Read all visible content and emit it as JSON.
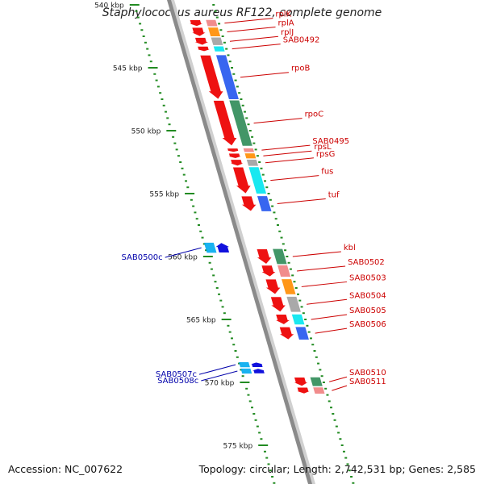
{
  "title": "Staphylococcus aureus RF122, complete genome",
  "footer": {
    "accession": "Accession: NC_007622",
    "stats": "Topology: circular; Length: 2,742,531 bp; Genes: 2,585"
  },
  "scale": {
    "unit": "kbp",
    "ticks": [
      540,
      545,
      550,
      555,
      560,
      565,
      570,
      575
    ]
  },
  "colors": {
    "forward_gene": "#ee1111",
    "reverse_gene": "#1111dd",
    "label_forward": "#cc0000",
    "label_reverse": "#0000aa",
    "tick": "#228b22"
  },
  "genes_forward": [
    {
      "label": "rplK",
      "start": 541.2,
      "end": 541.7
    },
    {
      "label": "rplA",
      "start": 541.8,
      "end": 542.5
    },
    {
      "label": "rplJ",
      "start": 542.6,
      "end": 543.2
    },
    {
      "label": "SAB0492",
      "start": 543.3,
      "end": 543.7
    },
    {
      "label": "rpoB",
      "start": 544.0,
      "end": 547.5
    },
    {
      "label": "rpoC",
      "start": 547.6,
      "end": 551.2
    },
    {
      "label": "SAB0495",
      "start": 551.4,
      "end": 551.7
    },
    {
      "label": "rpsL",
      "start": 551.8,
      "end": 552.2
    },
    {
      "label": "rpsG",
      "start": 552.3,
      "end": 552.8
    },
    {
      "label": "fus",
      "start": 552.9,
      "end": 555.0
    },
    {
      "label": "tuf",
      "start": 555.2,
      "end": 556.4
    },
    {
      "label": "kbl",
      "start": 559.4,
      "end": 560.6
    },
    {
      "label": "SAB0502",
      "start": 560.7,
      "end": 561.6
    },
    {
      "label": "SAB0503",
      "start": 561.8,
      "end": 563.0
    },
    {
      "label": "SAB0504",
      "start": 563.2,
      "end": 564.4
    },
    {
      "label": "SAB0505",
      "start": 564.6,
      "end": 565.4
    },
    {
      "label": "SAB0506",
      "start": 565.6,
      "end": 566.6
    },
    {
      "label": "SAB0510",
      "start": 569.6,
      "end": 570.3
    },
    {
      "label": "SAB0511",
      "start": 570.4,
      "end": 570.9
    }
  ],
  "genes_reverse": [
    {
      "label": "SAB0500c",
      "start": 558.9,
      "end": 559.7
    },
    {
      "label": "SAB0507c",
      "start": 568.4,
      "end": 568.8
    },
    {
      "label": "SAB0508c",
      "start": 568.9,
      "end": 569.3
    }
  ]
}
